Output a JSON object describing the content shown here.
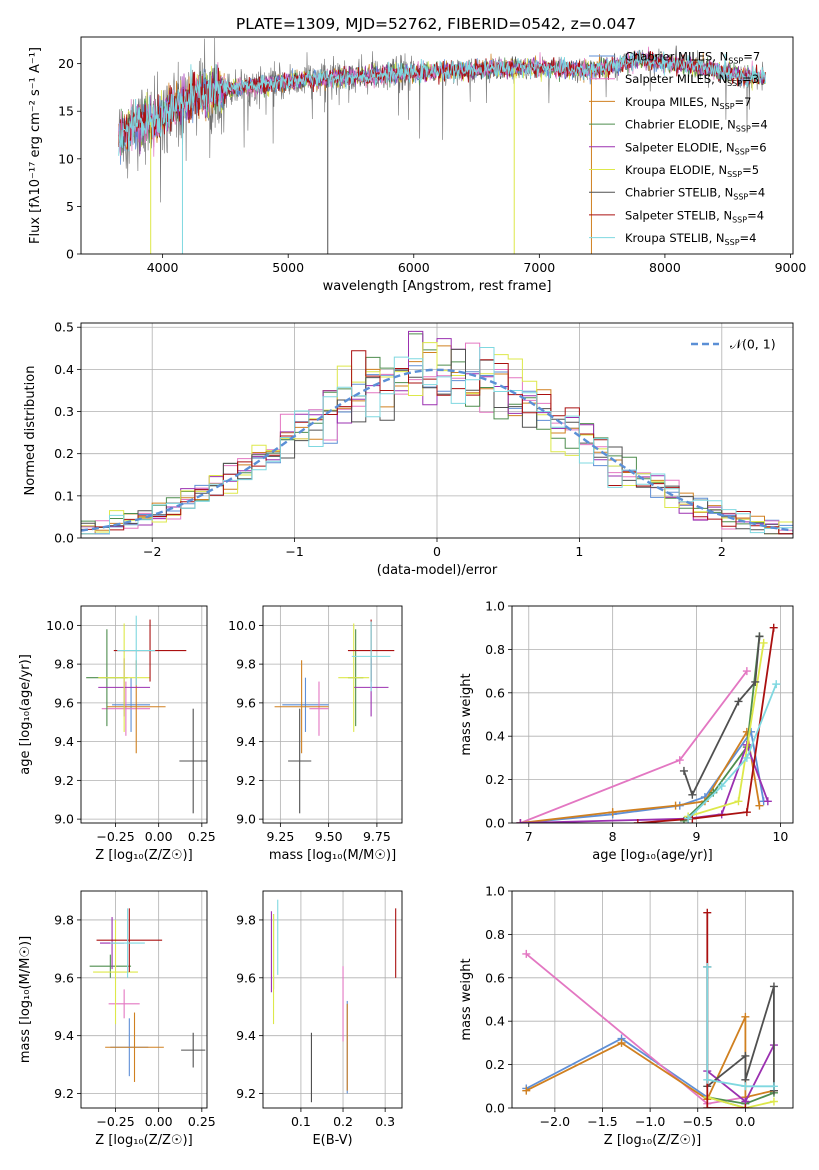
{
  "title": "PLATE=1309, MJD=52762, FIBERID=0542, z=0.047",
  "legend_entries": [
    {
      "name": "Chabrier MILES, N",
      "sub": "SSP",
      "rest": "=7",
      "color": "#5f8fd6"
    },
    {
      "name": "Salpeter MILES, N",
      "sub": "SSP",
      "rest": "=3",
      "color": "#e377c2"
    },
    {
      "name": "Kroupa MILES, N",
      "sub": "SSP",
      "rest": "=7",
      "color": "#d08020"
    },
    {
      "name": "Chabrier ELODIE, N",
      "sub": "SSP",
      "rest": "=4",
      "color": "#4e8d4e"
    },
    {
      "name": "Salpeter ELODIE, N",
      "sub": "SSP",
      "rest": "=6",
      "color": "#9b30b0"
    },
    {
      "name": "Kroupa ELODIE, N",
      "sub": "SSP",
      "rest": "=5",
      "color": "#dde84a"
    },
    {
      "name": "Chabrier STELIB, N",
      "sub": "SSP",
      "rest": "=4",
      "color": "#505050"
    },
    {
      "name": "Salpeter STELIB, N",
      "sub": "SSP",
      "rest": "=4",
      "color": "#aa1010"
    },
    {
      "name": "Kroupa STELIB, N",
      "sub": "SSP",
      "rest": "=4",
      "color": "#7fd8e0"
    }
  ],
  "chart_data": [
    {
      "id": "spectrum",
      "type": "line",
      "xlabel": "wavelength [Angstrom, rest frame]",
      "ylabel": "Flux [fλ10⁻¹⁷ erg cm⁻² s⁻¹ A⁻¹]",
      "xlim": [
        3350,
        9020
      ],
      "ylim": [
        0,
        22.8
      ],
      "xticks": [
        4000,
        5000,
        6000,
        7000,
        8000,
        9000
      ],
      "yticks": [
        0,
        5,
        10,
        15,
        20
      ],
      "continuum_x": [
        3650,
        3800,
        3950,
        4100,
        4300,
        4500,
        4800,
        5200,
        5600,
        6000,
        6500,
        7000,
        7400,
        7800,
        8200,
        8600,
        8800
      ],
      "continuum_y": [
        12.5,
        13.5,
        14.0,
        15.5,
        16.8,
        17.3,
        17.8,
        18.4,
        18.7,
        19.0,
        19.4,
        19.6,
        19.3,
        20.4,
        19.8,
        18.8,
        18.6
      ],
      "spikes": [
        {
          "x": 3905,
          "y": 0
        },
        {
          "x": 4158,
          "y": 0
        },
        {
          "x": 5315,
          "y": 0
        },
        {
          "x": 6800,
          "y": 0
        },
        {
          "x": 7415,
          "y": 0
        }
      ]
    },
    {
      "id": "residuals",
      "type": "histogram",
      "xlabel": "(data-model)/error",
      "ylabel": "Normed distribution",
      "xlim": [
        -2.5,
        2.5
      ],
      "ylim": [
        0,
        0.51
      ],
      "xticks": [
        -2,
        -1,
        0,
        1,
        2
      ],
      "yticks": [
        0.0,
        0.1,
        0.2,
        0.3,
        0.4,
        0.5
      ],
      "legend": "𝒩(0, 1)",
      "bin_width": 0.1
    },
    {
      "id": "age_vs_z",
      "type": "errorbar",
      "xlabel": "Z [log₁₀(Z/Z☉)]",
      "ylabel": "age  [log₁₀(age/yr)]",
      "xlim": [
        -0.45,
        0.28
      ],
      "ylim": [
        8.98,
        10.1
      ],
      "xticks": [
        -0.25,
        0.0,
        0.25
      ],
      "yticks": [
        9.0,
        9.2,
        9.4,
        9.6,
        9.8,
        10.0
      ],
      "points": [
        {
          "x": -0.16,
          "y": 9.59,
          "xerr": 0.11,
          "yerr": 0.14,
          "series": 0
        },
        {
          "x": -0.19,
          "y": 9.57,
          "xerr": 0.14,
          "yerr": 0.14,
          "series": 1
        },
        {
          "x": -0.13,
          "y": 9.58,
          "xerr": 0.17,
          "yerr": 0.24,
          "series": 2
        },
        {
          "x": -0.3,
          "y": 9.73,
          "xerr": 0.12,
          "yerr": 0.25,
          "series": 3
        },
        {
          "x": -0.2,
          "y": 9.68,
          "xerr": 0.15,
          "yerr": 0.15,
          "series": 4
        },
        {
          "x": -0.2,
          "y": 9.73,
          "xerr": 0.15,
          "yerr": 0.28,
          "series": 5
        },
        {
          "x": 0.2,
          "y": 9.3,
          "xerr": 0.08,
          "yerr": 0.27,
          "series": 6
        },
        {
          "x": -0.05,
          "y": 9.87,
          "xerr": 0.21,
          "yerr": 0.16,
          "series": 7
        },
        {
          "x": -0.13,
          "y": 9.87,
          "xerr": 0.11,
          "yerr": 0.18,
          "series": 8
        }
      ]
    },
    {
      "id": "age_vs_mass",
      "type": "errorbar",
      "xlabel": "mass [log₁₀(M/M☉)]",
      "ylabel": "",
      "xlim": [
        9.16,
        9.88
      ],
      "ylim": [
        8.98,
        10.1
      ],
      "xticks": [
        9.25,
        9.5,
        9.75
      ],
      "yticks": [
        9.0,
        9.2,
        9.4,
        9.6,
        9.8,
        10.0
      ],
      "points": [
        {
          "x": 9.38,
          "y": 9.59,
          "xerr": 0.12,
          "yerr": 0.14,
          "series": 0
        },
        {
          "x": 9.45,
          "y": 9.57,
          "xerr": 0.05,
          "yerr": 0.14,
          "series": 1
        },
        {
          "x": 9.36,
          "y": 9.58,
          "xerr": 0.14,
          "yerr": 0.24,
          "series": 2
        },
        {
          "x": 9.64,
          "y": 9.73,
          "xerr": 0.04,
          "yerr": 0.25,
          "series": 3
        },
        {
          "x": 9.72,
          "y": 9.68,
          "xerr": 0.09,
          "yerr": 0.15,
          "series": 4
        },
        {
          "x": 9.63,
          "y": 9.73,
          "xerr": 0.08,
          "yerr": 0.28,
          "series": 5
        },
        {
          "x": 9.35,
          "y": 9.3,
          "xerr": 0.06,
          "yerr": 0.27,
          "series": 6
        },
        {
          "x": 9.72,
          "y": 9.87,
          "xerr": 0.12,
          "yerr": 0.16,
          "series": 7
        },
        {
          "x": 9.72,
          "y": 9.84,
          "xerr": 0.1,
          "yerr": 0.18,
          "series": 8
        }
      ]
    },
    {
      "id": "weight_vs_age",
      "type": "line",
      "xlabel": "age  [log₁₀(age/yr)]",
      "ylabel": "mass weight",
      "xlim": [
        6.8,
        10.15
      ],
      "ylim": [
        0,
        1.0
      ],
      "xticks": [
        7,
        8,
        9,
        10
      ],
      "yticks": [
        0.0,
        0.2,
        0.4,
        0.6,
        0.8,
        1.0
      ],
      "series": [
        {
          "x": [
            6.9,
            8.0,
            8.8,
            9.1,
            9.65,
            9.8
          ],
          "y": [
            0.0,
            0.04,
            0.08,
            0.12,
            0.42,
            0.1
          ],
          "series": 0
        },
        {
          "x": [
            6.9,
            8.8,
            9.6
          ],
          "y": [
            0.0,
            0.29,
            0.7
          ],
          "series": 1
        },
        {
          "x": [
            6.9,
            8.0,
            8.75,
            9.1,
            9.6,
            9.75
          ],
          "y": [
            0.0,
            0.05,
            0.08,
            0.1,
            0.42,
            0.08
          ],
          "series": 2
        },
        {
          "x": [
            8.85,
            9.2,
            9.6,
            9.75
          ],
          "y": [
            0.01,
            0.14,
            0.35,
            0.86
          ],
          "series": 3
        },
        {
          "x": [
            6.9,
            8.9,
            9.3,
            9.6,
            9.85
          ],
          "y": [
            0.0,
            0.02,
            0.04,
            0.36,
            0.1
          ],
          "series": 4
        },
        {
          "x": [
            8.9,
            9.5,
            9.8
          ],
          "y": [
            0.03,
            0.1,
            0.83
          ],
          "series": 5
        },
        {
          "x": [
            8.85,
            8.95,
            9.5,
            9.7,
            9.75
          ],
          "y": [
            0.24,
            0.13,
            0.56,
            0.65,
            0.86
          ],
          "series": 6
        },
        {
          "x": [
            8.3,
            8.95,
            9.6,
            9.92
          ],
          "y": [
            0.0,
            0.02,
            0.05,
            0.9
          ],
          "series": 7
        },
        {
          "x": [
            8.9,
            9.3,
            9.6,
            9.95
          ],
          "y": [
            0.02,
            0.17,
            0.3,
            0.64
          ],
          "series": 8
        }
      ]
    },
    {
      "id": "mass_vs_z",
      "type": "errorbar",
      "xlabel": "Z [log₁₀(Z/Z☉)]",
      "ylabel": "mass [log₁₀(M/M☉)]",
      "xlim": [
        -0.45,
        0.28
      ],
      "ylim": [
        9.15,
        9.9
      ],
      "xticks": [
        -0.25,
        0.0,
        0.25
      ],
      "yticks": [
        9.2,
        9.4,
        9.6,
        9.8
      ],
      "points": [
        {
          "x": -0.17,
          "y": 9.36,
          "xerr": 0.11,
          "yerr": 0.1,
          "series": 0
        },
        {
          "x": -0.2,
          "y": 9.51,
          "xerr": 0.09,
          "yerr": 0.05,
          "series": 1
        },
        {
          "x": -0.14,
          "y": 9.36,
          "xerr": 0.17,
          "yerr": 0.12,
          "series": 2
        },
        {
          "x": -0.28,
          "y": 9.64,
          "xerr": 0.12,
          "yerr": 0.04,
          "series": 3
        },
        {
          "x": -0.27,
          "y": 9.72,
          "xerr": 0.07,
          "yerr": 0.09,
          "series": 4
        },
        {
          "x": -0.25,
          "y": 9.62,
          "xerr": 0.13,
          "yerr": 0.18,
          "series": 5
        },
        {
          "x": 0.2,
          "y": 9.35,
          "xerr": 0.07,
          "yerr": 0.06,
          "series": 6
        },
        {
          "x": -0.17,
          "y": 9.73,
          "xerr": 0.19,
          "yerr": 0.11,
          "series": 7
        },
        {
          "x": -0.18,
          "y": 9.72,
          "xerr": 0.1,
          "yerr": 0.12,
          "series": 8
        }
      ]
    },
    {
      "id": "mass_vs_ebv",
      "type": "errorbar",
      "xlabel": "E(B-V)",
      "ylabel": "",
      "xlim": [
        0.01,
        0.34
      ],
      "ylim": [
        9.15,
        9.9
      ],
      "xticks": [
        0.1,
        0.2,
        0.3
      ],
      "yticks": [
        9.2,
        9.4,
        9.6,
        9.8
      ],
      "points": [
        {
          "x": 0.21,
          "y": 9.36,
          "xerr": 0.0,
          "yerr": 0.16,
          "series": 0
        },
        {
          "x": 0.2,
          "y": 9.51,
          "xerr": 0.0,
          "yerr": 0.13,
          "series": 1
        },
        {
          "x": 0.21,
          "y": 9.36,
          "xerr": 0.0,
          "yerr": 0.15,
          "series": 2
        },
        {
          "x": 0.035,
          "y": 9.69,
          "xerr": 0.0,
          "yerr": 0.13,
          "series": 3
        },
        {
          "x": 0.03,
          "y": 9.69,
          "xerr": 0.0,
          "yerr": 0.14,
          "series": 4
        },
        {
          "x": 0.035,
          "y": 9.63,
          "xerr": 0.0,
          "yerr": 0.19,
          "series": 5
        },
        {
          "x": 0.125,
          "y": 9.29,
          "xerr": 0.0,
          "yerr": 0.12,
          "series": 6
        },
        {
          "x": 0.325,
          "y": 9.72,
          "xerr": 0.0,
          "yerr": 0.12,
          "series": 7
        },
        {
          "x": 0.045,
          "y": 9.74,
          "xerr": 0.0,
          "yerr": 0.13,
          "series": 8
        }
      ]
    },
    {
      "id": "weight_vs_z",
      "type": "line",
      "xlabel": "Z [log₁₀(Z/Z☉)]",
      "ylabel": "mass weight",
      "xlim": [
        -2.45,
        0.5
      ],
      "ylim": [
        0,
        1.0
      ],
      "xticks": [
        -2.0,
        -1.5,
        -1.0,
        -0.5,
        0.0
      ],
      "yticks": [
        0.0,
        0.2,
        0.4,
        0.6,
        0.8,
        1.0
      ],
      "series": [
        {
          "x": [
            -2.3,
            -1.3,
            -0.4,
            0.0
          ],
          "y": [
            0.09,
            0.32,
            0.05,
            0.0
          ],
          "series": 0
        },
        {
          "x": [
            -2.3,
            -0.4,
            0.0
          ],
          "y": [
            0.71,
            0.02,
            0.05
          ],
          "series": 1
        },
        {
          "x": [
            -2.3,
            -1.3,
            -0.4,
            0.0,
            0.0,
            0.3
          ],
          "y": [
            0.08,
            0.3,
            0.04,
            0.42,
            0.05,
            0.08
          ],
          "series": 2
        },
        {
          "x": [
            -0.4,
            0.0,
            0.3
          ],
          "y": [
            0.05,
            0.02,
            0.07
          ],
          "series": 3
        },
        {
          "x": [
            -0.4,
            0.0,
            0.3
          ],
          "y": [
            0.17,
            0.03,
            0.29
          ],
          "series": 4
        },
        {
          "x": [
            -0.4,
            0.0,
            0.3
          ],
          "y": [
            0.05,
            0.0,
            0.03
          ],
          "series": 5
        },
        {
          "x": [
            -0.4,
            -0.4,
            0.0,
            0.0,
            0.3,
            0.3
          ],
          "y": [
            0.65,
            0.1,
            0.24,
            0.13,
            0.56,
            0.08
          ],
          "series": 6
        },
        {
          "x": [
            -0.4,
            -0.4,
            0.0
          ],
          "y": [
            0.9,
            0.0,
            0.0
          ],
          "series": 7
        },
        {
          "x": [
            -0.4,
            -0.4,
            0.0,
            0.3
          ],
          "y": [
            0.65,
            0.13,
            0.1,
            0.1
          ],
          "series": 8
        }
      ]
    }
  ]
}
